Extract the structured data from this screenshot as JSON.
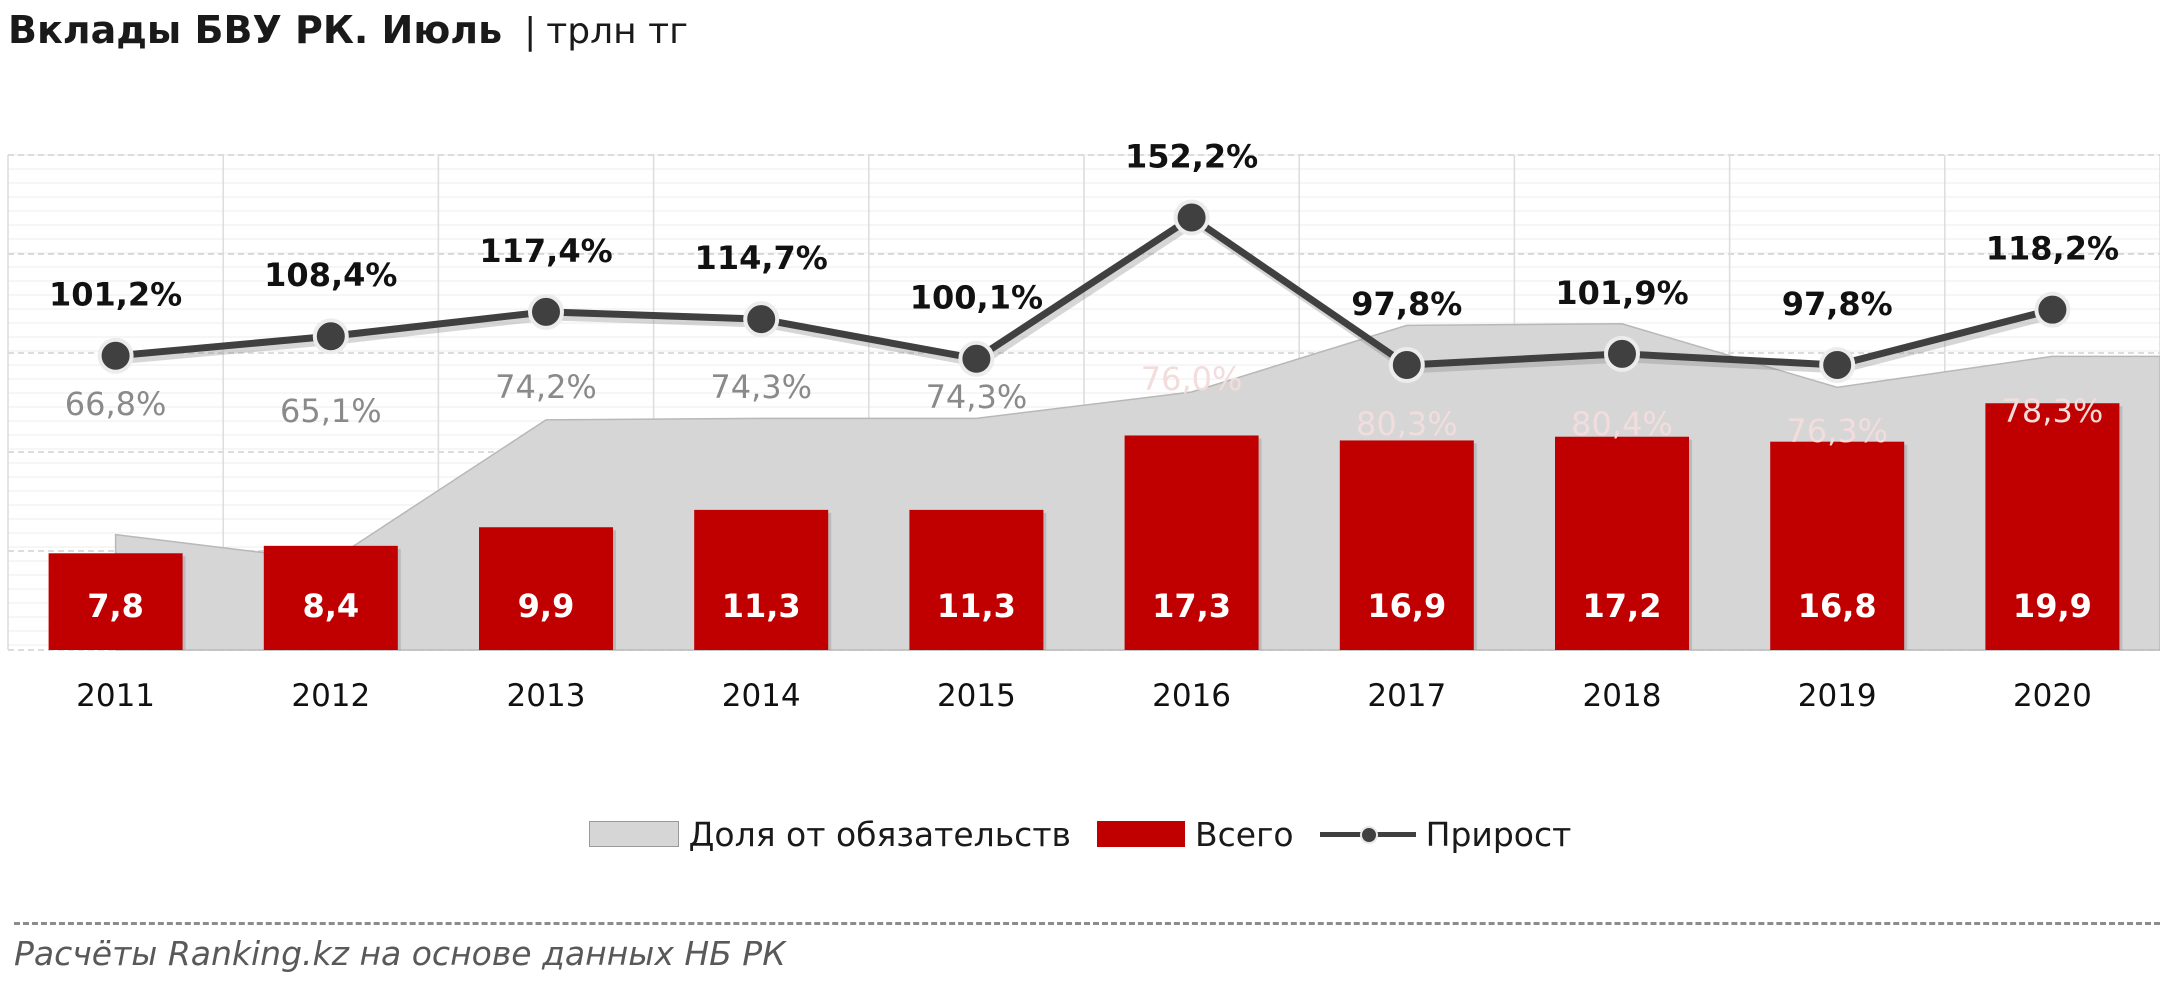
{
  "header": {
    "title": "Вклады БВУ РК. Июль",
    "separator": "|",
    "unit": "трлн тг"
  },
  "chart_data": {
    "type": "bar",
    "title": "Вклады БВУ РК. Июль",
    "subtitle": "трлн тг",
    "categories": [
      "2011",
      "2012",
      "2013",
      "2014",
      "2015",
      "2016",
      "2017",
      "2018",
      "2019",
      "2020"
    ],
    "series": [
      {
        "name": "Доля от обязательств",
        "type": "area",
        "values": [
          66.8,
          65.1,
          74.2,
          74.3,
          74.3,
          76.0,
          80.3,
          80.4,
          76.3,
          78.3
        ],
        "labels": [
          "66,8%",
          "65,1%",
          "74,2%",
          "74,3%",
          "74,3%",
          "76,0%",
          "80,3%",
          "80,4%",
          "76,3%",
          "78,3%"
        ],
        "color": "#d6d6d6"
      },
      {
        "name": "Всего",
        "type": "bar",
        "values": [
          7.8,
          8.4,
          9.9,
          11.3,
          11.3,
          17.3,
          16.9,
          17.2,
          16.8,
          19.9
        ],
        "labels": [
          "7,8",
          "8,4",
          "9,9",
          "11,3",
          "11,3",
          "17,3",
          "16,9",
          "17,2",
          "16,8",
          "19,9"
        ],
        "color": "#c00000"
      },
      {
        "name": "Прирост",
        "type": "line",
        "values": [
          101.2,
          108.4,
          117.4,
          114.7,
          100.1,
          152.2,
          97.8,
          101.9,
          97.8,
          118.2
        ],
        "labels": [
          "101,2%",
          "108,4%",
          "117,4%",
          "114,7%",
          "100,1%",
          "152,2%",
          "97,8%",
          "101,9%",
          "97,8%",
          "118,2%"
        ],
        "color": "#404040"
      }
    ],
    "grid": true,
    "legend_position": "bottom"
  },
  "legend": {
    "items": [
      "Доля от обязательств",
      "Всего",
      "Прирост"
    ]
  },
  "footer": {
    "source": "Расчёты Ranking.kz на основе данных НБ РК"
  }
}
